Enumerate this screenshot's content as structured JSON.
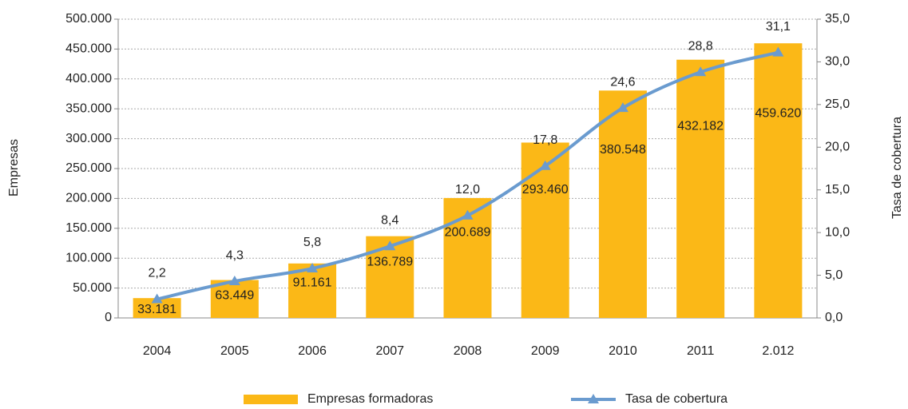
{
  "chart_data": {
    "type": "bar_line",
    "categories": [
      "2004",
      "2005",
      "2006",
      "2007",
      "2008",
      "2009",
      "2010",
      "2011",
      "2.012"
    ],
    "y_label": "Empresas",
    "y2_label": "Tasa de cobertura",
    "grid": true,
    "legend": "bottom",
    "series": [
      {
        "name": "Empresas formadoras",
        "type": "bar",
        "color": "#fbb817",
        "values": [
          33181,
          63449,
          91161,
          136789,
          200689,
          293460,
          380548,
          432182,
          459620
        ],
        "value_labels": [
          "33.181",
          "63.449",
          "91.161",
          "136.789",
          "200.689",
          "293.460",
          "380.548",
          "432.182",
          "459.620"
        ]
      },
      {
        "name": "Tasa de cobertura",
        "type": "line",
        "axis": "y2",
        "color": "#6a9bcf",
        "values": [
          2.2,
          4.3,
          5.8,
          8.4,
          12.0,
          17.8,
          24.6,
          28.8,
          31.1
        ],
        "value_labels": [
          "2,2",
          "4,3",
          "5,8",
          "8,4",
          "12,0",
          "17,8",
          "24,6",
          "28,8",
          "31,1"
        ]
      }
    ],
    "ylim": [
      0,
      500000
    ],
    "yticks": [
      0,
      {
        "value": 50000,
        "label": "50.000"
      },
      {
        "value": 100000,
        "label": "100.000"
      },
      {
        "value": 150000,
        "label": "150.000"
      },
      {
        "value": 200000,
        "label": "200.000"
      },
      {
        "value": 250000,
        "label": "250.000"
      },
      {
        "value": 300000,
        "label": "300.000"
      },
      {
        "value": 350000,
        "label": "350.000"
      },
      {
        "value": 400000,
        "label": "400.000"
      },
      {
        "value": 450000,
        "label": "450.000"
      },
      {
        "value": 500000,
        "label": "500.000"
      }
    ],
    "y2lim": [
      0,
      35
    ],
    "y2ticks": [
      {
        "value": 0,
        "label": "0,0"
      },
      {
        "value": 5,
        "label": "5,0"
      },
      {
        "value": 10,
        "label": "10,0"
      },
      {
        "value": 15,
        "label": "15,0"
      },
      {
        "value": 20,
        "label": "20,0"
      },
      {
        "value": 25,
        "label": "25,0"
      },
      {
        "value": 30,
        "label": "30,0"
      },
      {
        "value": 35,
        "label": "35,0"
      }
    ]
  }
}
